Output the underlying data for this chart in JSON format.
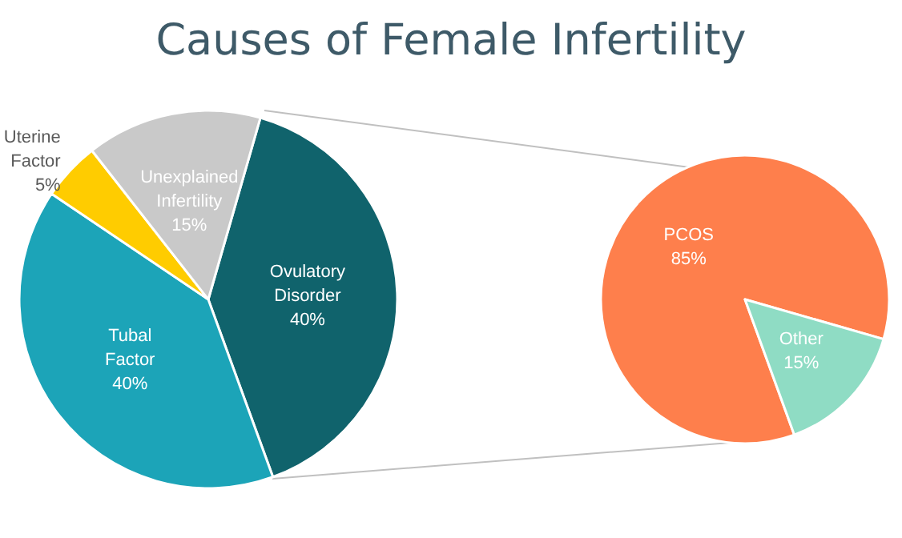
{
  "chart_data": [
    {
      "type": "pie",
      "title": "Causes of Female Infertility",
      "categories": [
        "Ovulatory Disorder",
        "Tubal Factor",
        "Uterine Factor",
        "Unexplained Infertility"
      ],
      "values": [
        40,
        40,
        5,
        15
      ],
      "colors": [
        "#10636c",
        "#1ca4b8",
        "#ffcc00",
        "#c9c9c9"
      ],
      "value_labels": [
        "40%",
        "40%",
        "5%",
        "15%"
      ]
    },
    {
      "type": "pie",
      "categories": [
        "PCOS",
        "Other"
      ],
      "values": [
        85,
        15
      ],
      "colors": [
        "#fe7f4c",
        "#8fdcc4"
      ],
      "value_labels": [
        "85%",
        "15%"
      ]
    }
  ]
}
